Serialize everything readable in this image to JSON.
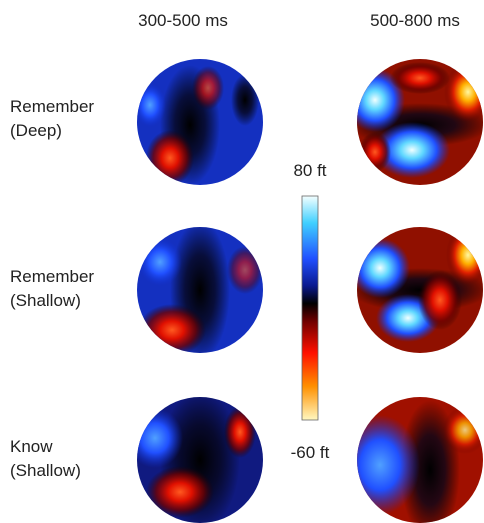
{
  "columns": [
    "300-500 ms",
    "500-800 ms"
  ],
  "rows": [
    {
      "line1": "Remember",
      "line2": "(Deep)"
    },
    {
      "line1": "Remember",
      "line2": "(Shallow)"
    },
    {
      "line1": "Know",
      "line2": "(Shallow)"
    }
  ],
  "colorbar": {
    "max_label": "80 ft",
    "min_label": "-60 ft"
  }
}
